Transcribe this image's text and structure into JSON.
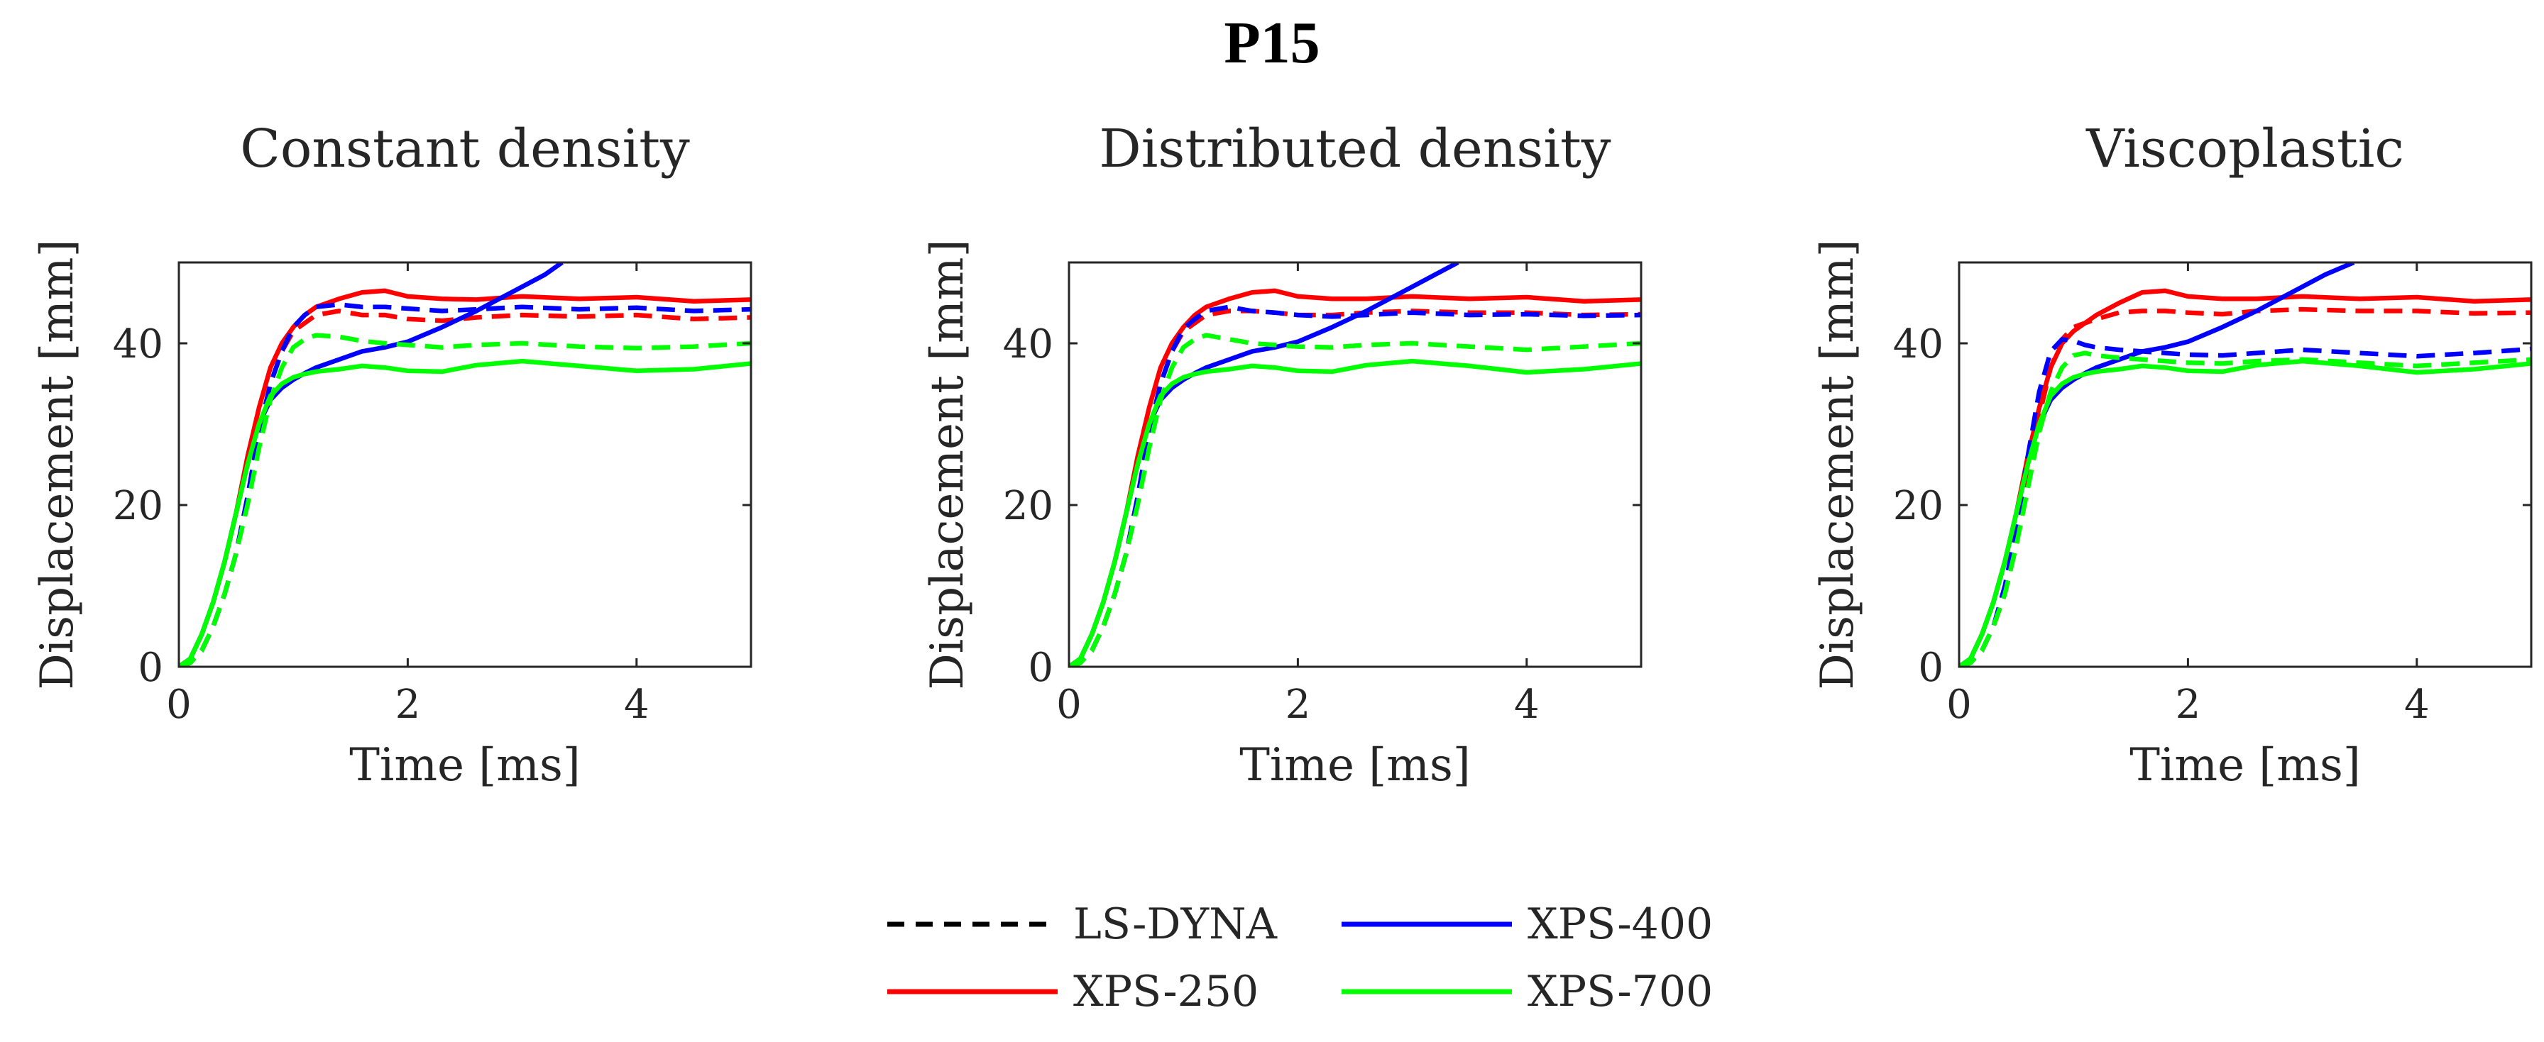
{
  "figure_title": "P15",
  "chart_data": [
    {
      "type": "line",
      "title": "Constant density",
      "xlabel": "Time [ms]",
      "ylabel": "Displacement [mm]",
      "xlim": [
        0,
        5
      ],
      "ylim": [
        0,
        50
      ],
      "xticks": [
        0,
        2,
        4
      ],
      "yticks": [
        0,
        20,
        40
      ],
      "grid": false,
      "series": [
        {
          "name": "XPS-250 (XPS)",
          "color": "#ff0000",
          "style": "solid",
          "x": [
            0,
            0.1,
            0.2,
            0.3,
            0.4,
            0.5,
            0.6,
            0.7,
            0.8,
            0.9,
            1.0,
            1.1,
            1.2,
            1.4,
            1.6,
            1.8,
            2.0,
            2.3,
            2.6,
            3.0,
            3.5,
            4.0,
            4.5,
            5.0
          ],
          "y": [
            0,
            1,
            4,
            8,
            13,
            19,
            26,
            32,
            37,
            40,
            42,
            43.5,
            44.5,
            45.5,
            46.3,
            46.5,
            45.8,
            45.5,
            45.4,
            45.8,
            45.5,
            45.7,
            45.2,
            45.4
          ]
        },
        {
          "name": "XPS-250 (LS-DYNA)",
          "color": "#ff0000",
          "style": "dashed",
          "x": [
            0,
            0.1,
            0.2,
            0.3,
            0.4,
            0.5,
            0.6,
            0.7,
            0.8,
            0.9,
            1.0,
            1.1,
            1.2,
            1.4,
            1.6,
            1.8,
            2.0,
            2.3,
            2.6,
            3.0,
            3.5,
            4.0,
            4.5,
            5.0
          ],
          "y": [
            0,
            0.5,
            2,
            5,
            9,
            14,
            21,
            29,
            35,
            39,
            41.5,
            42.5,
            43.5,
            44,
            43.5,
            43.5,
            43,
            42.8,
            43.2,
            43.5,
            43.3,
            43.5,
            43,
            43.2
          ]
        },
        {
          "name": "XPS-400 (XPS)",
          "color": "#0000ff",
          "style": "solid",
          "x": [
            0,
            0.1,
            0.2,
            0.3,
            0.4,
            0.5,
            0.6,
            0.7,
            0.8,
            0.9,
            1.0,
            1.1,
            1.2,
            1.4,
            1.6,
            1.8,
            2.0,
            2.3,
            2.6,
            3.0,
            3.2,
            3.35
          ],
          "y": [
            0,
            1,
            4,
            8,
            13,
            19,
            25,
            30,
            33,
            34.5,
            35.5,
            36.3,
            37,
            38,
            39,
            39.5,
            40.2,
            42,
            44,
            47,
            48.5,
            50
          ]
        },
        {
          "name": "XPS-400 (LS-DYNA)",
          "color": "#0000ff",
          "style": "dashed",
          "x": [
            0,
            0.1,
            0.2,
            0.3,
            0.4,
            0.5,
            0.6,
            0.7,
            0.8,
            0.9,
            1.0,
            1.1,
            1.2,
            1.4,
            1.6,
            1.8,
            2.0,
            2.3,
            2.6,
            3.0,
            3.5,
            4.0,
            4.5,
            5.0
          ],
          "y": [
            0,
            0.5,
            2,
            5,
            9,
            14,
            21,
            29,
            35,
            39,
            42,
            43.5,
            44.5,
            44.8,
            44.5,
            44.5,
            44.3,
            44,
            44.2,
            44.5,
            44.2,
            44.4,
            44,
            44.2
          ]
        },
        {
          "name": "XPS-700 (XPS)",
          "color": "#00ff00",
          "style": "solid",
          "x": [
            0,
            0.1,
            0.2,
            0.3,
            0.4,
            0.5,
            0.6,
            0.7,
            0.8,
            0.9,
            1.0,
            1.1,
            1.2,
            1.4,
            1.6,
            1.8,
            2.0,
            2.3,
            2.6,
            3.0,
            3.5,
            4.0,
            4.5,
            5.0
          ],
          "y": [
            0,
            1,
            4,
            8,
            13,
            19,
            25,
            30,
            33.5,
            35,
            35.8,
            36.2,
            36.5,
            36.8,
            37.2,
            37,
            36.6,
            36.5,
            37.3,
            37.8,
            37.2,
            36.6,
            36.8,
            37.5
          ]
        },
        {
          "name": "XPS-700 (LS-DYNA)",
          "color": "#00ff00",
          "style": "dashed",
          "x": [
            0,
            0.1,
            0.2,
            0.3,
            0.4,
            0.5,
            0.6,
            0.7,
            0.8,
            0.9,
            1.0,
            1.1,
            1.2,
            1.4,
            1.6,
            1.8,
            2.0,
            2.3,
            2.6,
            3.0,
            3.5,
            4.0,
            4.5,
            5.0
          ],
          "y": [
            0,
            0.5,
            2,
            5,
            9,
            14,
            20,
            27,
            33,
            37,
            39.5,
            40.5,
            41,
            40.8,
            40.3,
            40,
            39.8,
            39.5,
            39.8,
            40,
            39.6,
            39.4,
            39.6,
            40
          ]
        }
      ]
    },
    {
      "type": "line",
      "title": "Distributed density",
      "xlabel": "Time [ms]",
      "ylabel": "Displacement [mm]",
      "xlim": [
        0,
        5
      ],
      "ylim": [
        0,
        50
      ],
      "xticks": [
        0,
        2,
        4
      ],
      "yticks": [
        0,
        20,
        40
      ],
      "grid": false,
      "series": [
        {
          "name": "XPS-250 (XPS)",
          "color": "#ff0000",
          "style": "solid",
          "x": [
            0,
            0.1,
            0.2,
            0.3,
            0.4,
            0.5,
            0.6,
            0.7,
            0.8,
            0.9,
            1.0,
            1.1,
            1.2,
            1.4,
            1.6,
            1.8,
            2.0,
            2.3,
            2.6,
            3.0,
            3.5,
            4.0,
            4.5,
            5.0
          ],
          "y": [
            0,
            1,
            4,
            8,
            13,
            19,
            26,
            32,
            37,
            40,
            42,
            43.5,
            44.5,
            45.5,
            46.3,
            46.5,
            45.8,
            45.5,
            45.5,
            45.8,
            45.5,
            45.7,
            45.2,
            45.4
          ]
        },
        {
          "name": "XPS-250 (LS-DYNA)",
          "color": "#ff0000",
          "style": "dashed",
          "x": [
            0,
            0.1,
            0.2,
            0.3,
            0.4,
            0.5,
            0.6,
            0.7,
            0.8,
            0.9,
            1.0,
            1.1,
            1.2,
            1.4,
            1.6,
            1.8,
            2.0,
            2.3,
            2.6,
            3.0,
            3.5,
            4.0,
            4.5,
            5.0
          ],
          "y": [
            0,
            0.5,
            2,
            5,
            9,
            14,
            21,
            29,
            35,
            39,
            41.5,
            42.5,
            43.5,
            44,
            44,
            43.8,
            43.5,
            43.5,
            43.8,
            44,
            43.8,
            43.8,
            43.5,
            43.6
          ]
        },
        {
          "name": "XPS-400 (XPS)",
          "color": "#0000ff",
          "style": "solid",
          "x": [
            0,
            0.1,
            0.2,
            0.3,
            0.4,
            0.5,
            0.6,
            0.7,
            0.8,
            0.9,
            1.0,
            1.1,
            1.2,
            1.4,
            1.6,
            1.8,
            2.0,
            2.3,
            2.6,
            3.0,
            3.2,
            3.4
          ],
          "y": [
            0,
            1,
            4,
            8,
            13,
            19,
            25,
            30,
            33,
            34.5,
            35.5,
            36.3,
            37,
            38,
            39,
            39.5,
            40.2,
            42,
            44,
            47,
            48.5,
            50
          ]
        },
        {
          "name": "XPS-400 (LS-DYNA)",
          "color": "#0000ff",
          "style": "dashed",
          "x": [
            0,
            0.1,
            0.2,
            0.3,
            0.4,
            0.5,
            0.6,
            0.7,
            0.8,
            0.9,
            1.0,
            1.1,
            1.2,
            1.4,
            1.6,
            1.8,
            2.0,
            2.3,
            2.6,
            3.0,
            3.5,
            4.0,
            4.5,
            5.0
          ],
          "y": [
            0,
            0.5,
            2,
            5,
            9,
            14,
            21,
            29,
            35,
            39,
            41.8,
            43,
            44,
            44.5,
            44,
            43.8,
            43.5,
            43.3,
            43.5,
            43.8,
            43.5,
            43.6,
            43.4,
            43.5
          ]
        },
        {
          "name": "XPS-700 (XPS)",
          "color": "#00ff00",
          "style": "solid",
          "x": [
            0,
            0.1,
            0.2,
            0.3,
            0.4,
            0.5,
            0.6,
            0.7,
            0.8,
            0.9,
            1.0,
            1.1,
            1.2,
            1.4,
            1.6,
            1.8,
            2.0,
            2.3,
            2.6,
            3.0,
            3.5,
            4.0,
            4.5,
            5.0
          ],
          "y": [
            0,
            1,
            4,
            8,
            13,
            19,
            25,
            30,
            33.5,
            35,
            35.8,
            36.2,
            36.5,
            36.8,
            37.2,
            37,
            36.6,
            36.5,
            37.3,
            37.8,
            37.2,
            36.4,
            36.8,
            37.5
          ]
        },
        {
          "name": "XPS-700 (LS-DYNA)",
          "color": "#00ff00",
          "style": "dashed",
          "x": [
            0,
            0.1,
            0.2,
            0.3,
            0.4,
            0.5,
            0.6,
            0.7,
            0.8,
            0.9,
            1.0,
            1.1,
            1.2,
            1.4,
            1.6,
            1.8,
            2.0,
            2.3,
            2.6,
            3.0,
            3.5,
            4.0,
            4.5,
            5.0
          ],
          "y": [
            0,
            0.5,
            2,
            5,
            9,
            14,
            20,
            27,
            33,
            37,
            39.5,
            40.5,
            41,
            40.5,
            40,
            39.8,
            39.6,
            39.5,
            39.8,
            40,
            39.6,
            39.2,
            39.6,
            40
          ]
        }
      ]
    },
    {
      "type": "line",
      "title": "Viscoplastic",
      "xlabel": "Time [ms]",
      "ylabel": "Displacement [mm]",
      "xlim": [
        0,
        5
      ],
      "ylim": [
        0,
        50
      ],
      "xticks": [
        0,
        2,
        4
      ],
      "yticks": [
        0,
        20,
        40
      ],
      "grid": false,
      "series": [
        {
          "name": "XPS-250 (XPS)",
          "color": "#ff0000",
          "style": "solid",
          "x": [
            0,
            0.1,
            0.2,
            0.3,
            0.4,
            0.5,
            0.6,
            0.7,
            0.8,
            0.9,
            1.0,
            1.1,
            1.2,
            1.4,
            1.6,
            1.8,
            2.0,
            2.3,
            2.6,
            3.0,
            3.5,
            4.0,
            4.5,
            5.0
          ],
          "y": [
            0,
            1,
            4,
            8,
            13,
            19,
            26,
            32,
            37,
            40,
            41.5,
            42.5,
            43.5,
            45,
            46.3,
            46.5,
            45.8,
            45.5,
            45.5,
            45.8,
            45.5,
            45.7,
            45.2,
            45.4
          ]
        },
        {
          "name": "XPS-250 (LS-DYNA)",
          "color": "#ff0000",
          "style": "dashed",
          "x": [
            0,
            0.1,
            0.2,
            0.3,
            0.4,
            0.5,
            0.6,
            0.7,
            0.8,
            0.9,
            1.0,
            1.1,
            1.2,
            1.4,
            1.6,
            1.8,
            2.0,
            2.3,
            2.6,
            3.0,
            3.5,
            4.0,
            4.5,
            5.0
          ],
          "y": [
            0,
            0.5,
            2,
            5,
            9,
            15,
            23,
            31,
            37,
            40.5,
            42,
            42.5,
            43,
            43.8,
            44,
            44,
            43.8,
            43.6,
            44,
            44.2,
            44,
            44,
            43.7,
            43.8
          ]
        },
        {
          "name": "XPS-400 (XPS)",
          "color": "#0000ff",
          "style": "solid",
          "x": [
            0,
            0.1,
            0.2,
            0.3,
            0.4,
            0.5,
            0.6,
            0.7,
            0.8,
            0.9,
            1.0,
            1.1,
            1.2,
            1.4,
            1.6,
            1.8,
            2.0,
            2.3,
            2.6,
            3.0,
            3.2,
            3.45
          ],
          "y": [
            0,
            1,
            4,
            8,
            13,
            19,
            25,
            30,
            33,
            34.5,
            35.5,
            36.3,
            37,
            38,
            39,
            39.5,
            40.2,
            42,
            44,
            47,
            48.5,
            50
          ]
        },
        {
          "name": "XPS-400 (LS-DYNA)",
          "color": "#0000ff",
          "style": "dashed",
          "x": [
            0,
            0.1,
            0.2,
            0.3,
            0.4,
            0.5,
            0.6,
            0.7,
            0.8,
            0.9,
            1.0,
            1.1,
            1.2,
            1.4,
            1.6,
            1.8,
            2.0,
            2.3,
            2.6,
            3.0,
            3.5,
            4.0,
            4.5,
            5.0
          ],
          "y": [
            0,
            0.5,
            2,
            5,
            10,
            17,
            26,
            34,
            39,
            40.5,
            40.3,
            39.8,
            39.5,
            39.2,
            39,
            38.8,
            38.6,
            38.5,
            38.8,
            39.2,
            38.8,
            38.4,
            38.8,
            39.3
          ]
        },
        {
          "name": "XPS-700 (XPS)",
          "color": "#00ff00",
          "style": "solid",
          "x": [
            0,
            0.1,
            0.2,
            0.3,
            0.4,
            0.5,
            0.6,
            0.7,
            0.8,
            0.9,
            1.0,
            1.1,
            1.2,
            1.4,
            1.6,
            1.8,
            2.0,
            2.3,
            2.6,
            3.0,
            3.5,
            4.0,
            4.5,
            5.0
          ],
          "y": [
            0,
            1,
            4,
            8,
            13,
            19,
            25,
            30,
            33.5,
            35,
            35.8,
            36.2,
            36.5,
            36.8,
            37.2,
            37,
            36.6,
            36.5,
            37.3,
            37.8,
            37.2,
            36.4,
            36.8,
            37.5
          ]
        },
        {
          "name": "XPS-700 (LS-DYNA)",
          "color": "#00ff00",
          "style": "dashed",
          "x": [
            0,
            0.1,
            0.2,
            0.3,
            0.4,
            0.5,
            0.6,
            0.7,
            0.8,
            0.9,
            1.0,
            1.1,
            1.2,
            1.4,
            1.6,
            1.8,
            2.0,
            2.3,
            2.6,
            3.0,
            3.5,
            4.0,
            4.5,
            5.0
          ],
          "y": [
            0,
            0.5,
            2,
            5,
            9,
            15,
            22,
            29,
            34,
            37,
            38.5,
            38.8,
            38.5,
            38.2,
            38,
            37.8,
            37.6,
            37.5,
            37.8,
            38,
            37.6,
            37.2,
            37.6,
            38
          ]
        }
      ]
    }
  ],
  "legend": {
    "placement": "bottom-center",
    "entries": [
      {
        "label": "LS-DYNA",
        "color": "#000000",
        "style": "dashed"
      },
      {
        "label": "XPS-400",
        "color": "#0000ff",
        "style": "solid"
      },
      {
        "label": "XPS-250",
        "color": "#ff0000",
        "style": "solid"
      },
      {
        "label": "XPS-700",
        "color": "#00ff00",
        "style": "solid"
      }
    ]
  }
}
